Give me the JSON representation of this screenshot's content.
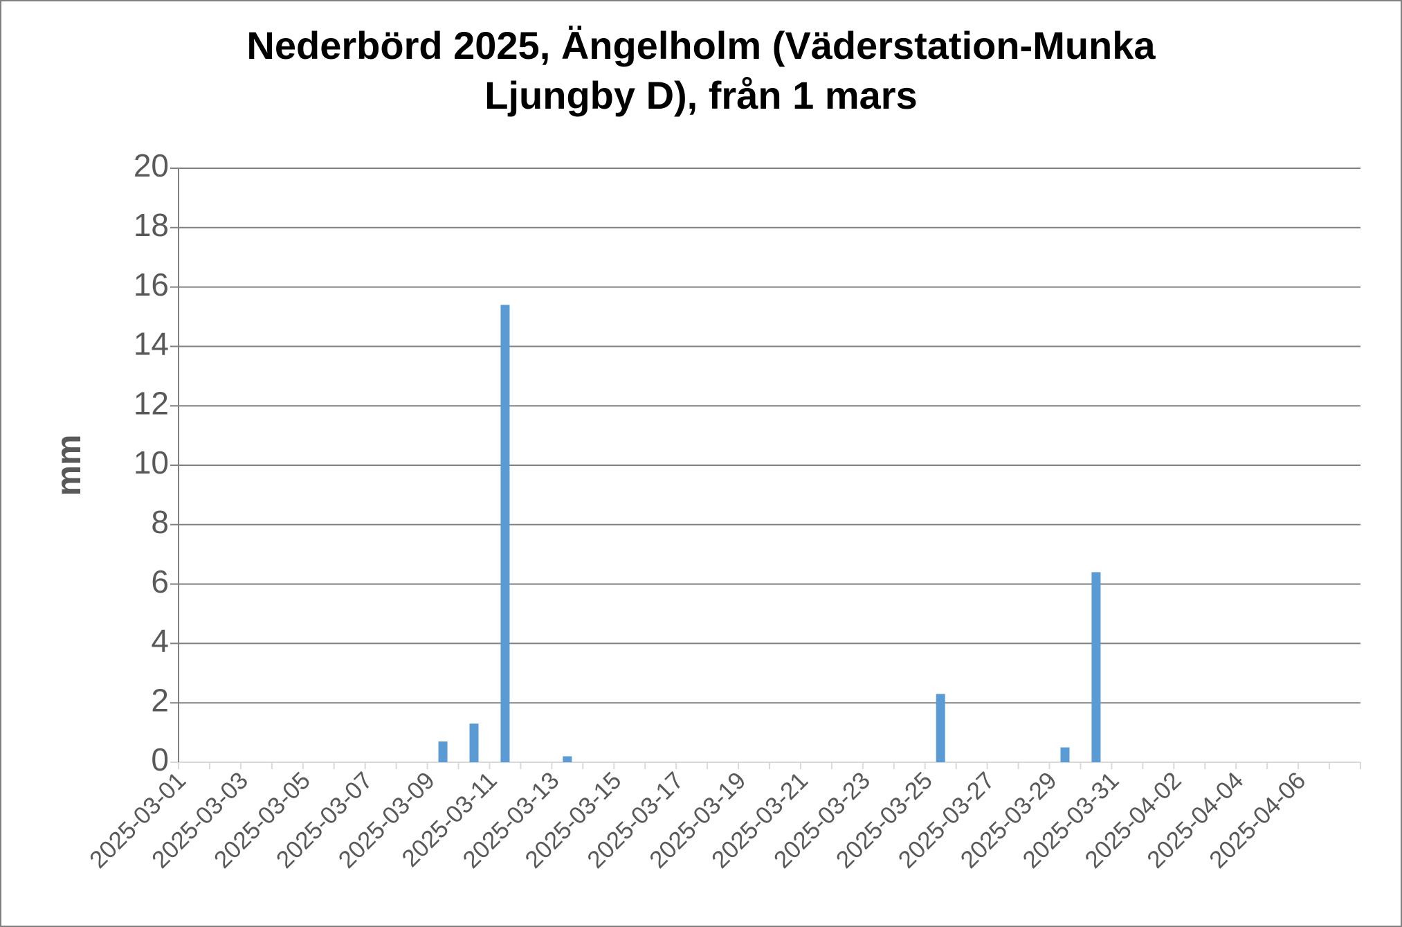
{
  "chart_data": {
    "type": "bar",
    "title": "Nederbörd 2025, Ängelholm (Väderstation-Munka Ljungby D), från 1 mars",
    "y_label": "mm",
    "categories": [
      "2025-03-01",
      null,
      "2025-03-03",
      null,
      "2025-03-05",
      null,
      "2025-03-07",
      null,
      "2025-03-09",
      null,
      "2025-03-11",
      null,
      "2025-03-13",
      null,
      "2025-03-15",
      null,
      "2025-03-17",
      null,
      "2025-03-19",
      null,
      "2025-03-21",
      null,
      "2025-03-23",
      null,
      "2025-03-25",
      null,
      "2025-03-27",
      null,
      "2025-03-29",
      null,
      "2025-03-31",
      null,
      "2025-04-02",
      null,
      "2025-04-04",
      null,
      "2025-04-06",
      null
    ],
    "values": [
      0,
      0,
      0,
      0,
      0,
      0,
      0,
      0,
      0.7,
      1.3,
      15.4,
      0,
      0.2,
      0,
      0,
      0,
      0,
      0,
      0,
      0,
      0,
      0,
      0,
      0,
      2.3,
      0,
      0,
      0,
      0.5,
      6.4,
      0,
      0,
      0,
      0,
      0,
      0,
      0,
      0
    ],
    "color": "#5b9bd5",
    "ylim": [
      0,
      20
    ],
    "yticks": [
      0,
      2,
      4,
      6,
      8,
      10,
      12,
      14,
      16,
      18,
      20
    ],
    "grid": true
  }
}
